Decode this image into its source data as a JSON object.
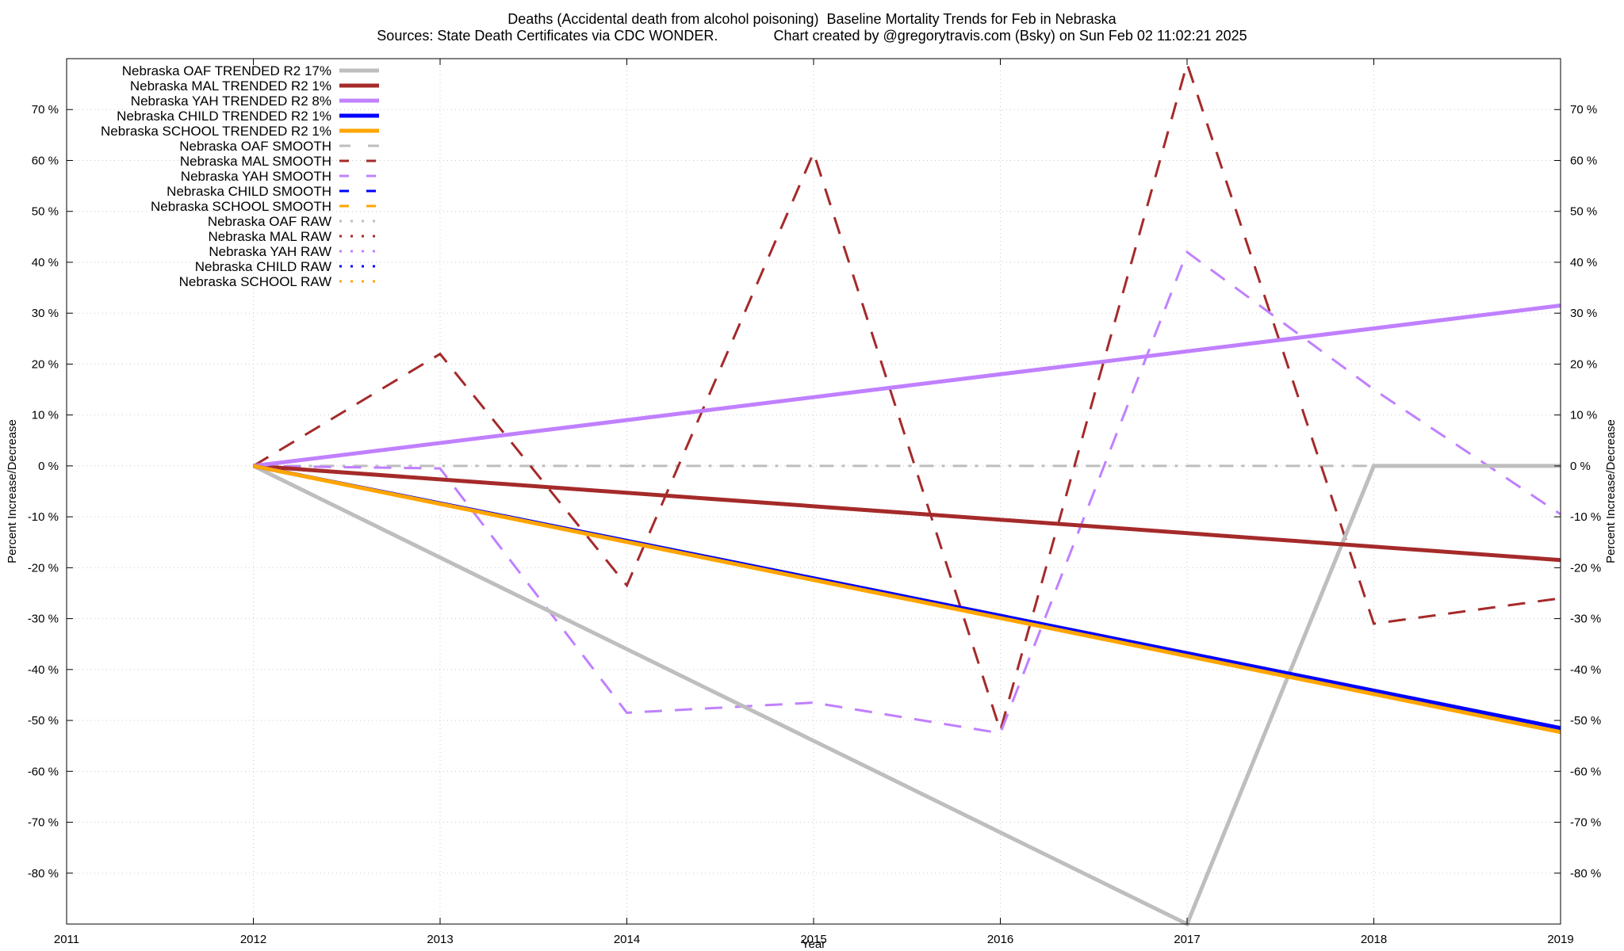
{
  "chart_data": {
    "type": "line",
    "title": "Deaths (Accidental death from alcohol poisoning)  Baseline Mortality Trends for Feb in Nebraska",
    "subtitle": "Sources: State Death Certificates via CDC WONDER.              Chart created by @gregorytravis.com (Bsky) on Sun Feb 02 11:02:21 2025",
    "xlabel": "Year",
    "ylabel": "Percent Increase/Decrease",
    "y2label": "Percent Increase/Decrease",
    "xlim": [
      2011,
      2019
    ],
    "ylim": [
      -90,
      80
    ],
    "x_ticks": [
      2011,
      2012,
      2013,
      2014,
      2015,
      2016,
      2017,
      2018,
      2019
    ],
    "y_ticks": [
      70,
      60,
      50,
      40,
      30,
      20,
      10,
      0,
      -10,
      -20,
      -30,
      -40,
      -50,
      -60,
      -70,
      -80
    ],
    "y_tick_labels": [
      "70 %",
      "60 %",
      "50 %",
      "40 %",
      "30 %",
      "20 %",
      "10 %",
      "0 %",
      "-10 %",
      "-20 %",
      "-30 %",
      "-40 %",
      "-50 %",
      "-60 %",
      "-70 %",
      "-80 %"
    ],
    "grid": true,
    "legend_position": "top-left",
    "series": [
      {
        "name": "Nebraska OAF TRENDED R2  17%",
        "color": "#bebebe",
        "style": "solid-thick",
        "x": [
          2012,
          2017,
          2018,
          2019
        ],
        "values": [
          0,
          -90,
          0,
          0
        ]
      },
      {
        "name": "Nebraska MAL TRENDED R2   1%",
        "color": "#a52a2a",
        "style": "solid-thick",
        "x": [
          2012,
          2019
        ],
        "values": [
          0,
          -18.5
        ]
      },
      {
        "name": "Nebraska YAH TRENDED R2   8%",
        "color": "#c080ff",
        "style": "solid-thick",
        "x": [
          2012,
          2019
        ],
        "values": [
          0,
          31.5
        ]
      },
      {
        "name": "Nebraska CHILD TRENDED R2   1%",
        "color": "#0000ff",
        "style": "solid-thick",
        "x": [
          2012,
          2019
        ],
        "values": [
          0,
          -51.5
        ]
      },
      {
        "name": "Nebraska SCHOOL TRENDED R2   1%",
        "color": "#ffa500",
        "style": "solid-thick",
        "x": [
          2012,
          2019
        ],
        "values": [
          0,
          -52.3
        ]
      },
      {
        "name": "Nebraska OAF SMOOTH",
        "color": "#bebebe",
        "style": "dashdot",
        "x": [
          2012,
          2013,
          2014,
          2015,
          2016,
          2017,
          2018,
          2019
        ],
        "values": [
          0,
          0,
          0,
          0,
          0,
          0,
          0,
          0
        ]
      },
      {
        "name": "Nebraska MAL SMOOTH",
        "color": "#a52a2a",
        "style": "dashed",
        "x": [
          2012,
          2013,
          2014,
          2015,
          2016,
          2017,
          2018,
          2019
        ],
        "values": [
          0,
          22,
          -23.5,
          61.5,
          -52,
          79,
          -31,
          -26
        ]
      },
      {
        "name": "Nebraska YAH SMOOTH",
        "color": "#c080ff",
        "style": "dashed",
        "x": [
          2012,
          2013,
          2014,
          2015,
          2016,
          2017,
          2018,
          2019
        ],
        "values": [
          0,
          -0.5,
          -48.5,
          -46.5,
          -52.5,
          42,
          15,
          -9.5
        ]
      },
      {
        "name": "Nebraska CHILD SMOOTH",
        "color": "#0000ff",
        "style": "dashed",
        "x": [],
        "values": []
      },
      {
        "name": "Nebraska SCHOOL SMOOTH",
        "color": "#ffa500",
        "style": "dashed",
        "x": [],
        "values": []
      },
      {
        "name": "Nebraska OAF RAW",
        "color": "#bebebe",
        "style": "dotted",
        "x": [],
        "values": []
      },
      {
        "name": "Nebraska MAL RAW",
        "color": "#a52a2a",
        "style": "dotted",
        "x": [],
        "values": []
      },
      {
        "name": "Nebraska YAH RAW",
        "color": "#c080ff",
        "style": "dotted",
        "x": [],
        "values": []
      },
      {
        "name": "Nebraska CHILD RAW",
        "color": "#0000ff",
        "style": "dotted",
        "x": [],
        "values": []
      },
      {
        "name": "Nebraska SCHOOL RAW",
        "color": "#ffa500",
        "style": "dotted",
        "x": [],
        "values": []
      }
    ]
  }
}
